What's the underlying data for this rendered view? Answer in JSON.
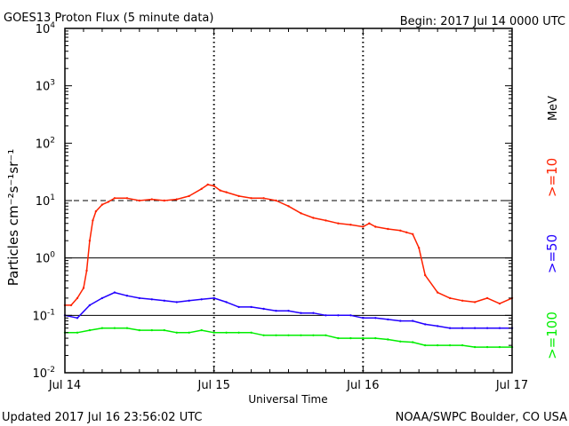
{
  "chart_data": {
    "type": "line",
    "title": "GOES13 Proton Flux (5 minute data)",
    "begin_label": "Begin: 2017 Jul 14 0000 UTC",
    "xlabel": "Universal Time",
    "ylabel": "Particles cm⁻²s⁻¹sr⁻¹",
    "units_label": "MeV",
    "y_scale": "log",
    "ylim": [
      0.01,
      10000
    ],
    "y_ticks": [
      {
        "value": 10000,
        "base": "10",
        "exp": "4"
      },
      {
        "value": 1000,
        "base": "10",
        "exp": "3"
      },
      {
        "value": 100,
        "base": "10",
        "exp": "2"
      },
      {
        "value": 10,
        "base": "10",
        "exp": "1"
      },
      {
        "value": 1,
        "base": "10",
        "exp": "0"
      },
      {
        "value": 0.1,
        "base": "10",
        "exp": "-1"
      },
      {
        "value": 0.01,
        "base": "10",
        "exp": "-2"
      }
    ],
    "xlim_hours": [
      0,
      72
    ],
    "x_ticks": [
      {
        "hour": 0,
        "label": "Jul 14"
      },
      {
        "hour": 24,
        "label": "Jul 15"
      },
      {
        "hour": 48,
        "label": "Jul 16"
      },
      {
        "hour": 72,
        "label": "Jul 17"
      }
    ],
    "threshold_lines": [
      {
        "value": 10,
        "style": "dashed"
      },
      {
        "value": 1,
        "style": "solid"
      },
      {
        "value": 0.1,
        "style": "solid"
      }
    ],
    "series": [
      {
        "name": ">=10",
        "color": "#ff2200",
        "x_hours": [
          0,
          1,
          2,
          3,
          3.5,
          4,
          4.5,
          5,
          6,
          7,
          8,
          10,
          12,
          14,
          16,
          18,
          20,
          22,
          23,
          24,
          25,
          26,
          28,
          30,
          32,
          34,
          36,
          38,
          40,
          42,
          44,
          46,
          48,
          49,
          50,
          52,
          54,
          55,
          56,
          57,
          58,
          60,
          62,
          64,
          66,
          68,
          70,
          72
        ],
        "values": [
          0.15,
          0.15,
          0.2,
          0.3,
          0.6,
          2.0,
          4.5,
          6.5,
          8.5,
          9.5,
          11,
          11,
          10,
          10.5,
          10,
          10.5,
          12,
          16,
          19,
          18,
          15,
          14,
          12,
          11,
          11,
          10,
          8,
          6,
          5,
          4.5,
          4,
          3.8,
          3.5,
          4,
          3.5,
          3.2,
          3,
          2.8,
          2.6,
          1.5,
          0.5,
          0.25,
          0.2,
          0.18,
          0.17,
          0.2,
          0.16,
          0.2
        ]
      },
      {
        "name": ">=50",
        "color": "#2200ff",
        "x_hours": [
          0,
          2,
          4,
          6,
          8,
          10,
          12,
          14,
          16,
          18,
          20,
          22,
          24,
          26,
          28,
          30,
          32,
          34,
          36,
          38,
          40,
          42,
          44,
          46,
          48,
          50,
          52,
          54,
          56,
          58,
          60,
          62,
          64,
          66,
          68,
          70,
          72
        ],
        "values": [
          0.1,
          0.09,
          0.15,
          0.2,
          0.25,
          0.22,
          0.2,
          0.19,
          0.18,
          0.17,
          0.18,
          0.19,
          0.2,
          0.17,
          0.14,
          0.14,
          0.13,
          0.12,
          0.12,
          0.11,
          0.11,
          0.1,
          0.1,
          0.1,
          0.09,
          0.09,
          0.085,
          0.08,
          0.08,
          0.07,
          0.065,
          0.06,
          0.06,
          0.06,
          0.06,
          0.06,
          0.06
        ]
      },
      {
        "name": ">=100",
        "color": "#00ee00",
        "x_hours": [
          0,
          2,
          4,
          6,
          8,
          10,
          12,
          14,
          16,
          18,
          20,
          22,
          24,
          26,
          28,
          30,
          32,
          34,
          36,
          38,
          40,
          42,
          44,
          46,
          48,
          50,
          52,
          54,
          56,
          58,
          60,
          62,
          64,
          66,
          68,
          70,
          72
        ],
        "values": [
          0.05,
          0.05,
          0.055,
          0.06,
          0.06,
          0.06,
          0.055,
          0.055,
          0.055,
          0.05,
          0.05,
          0.055,
          0.05,
          0.05,
          0.05,
          0.05,
          0.045,
          0.045,
          0.045,
          0.045,
          0.045,
          0.045,
          0.04,
          0.04,
          0.04,
          0.04,
          0.038,
          0.035,
          0.034,
          0.03,
          0.03,
          0.03,
          0.03,
          0.028,
          0.028,
          0.028,
          0.028
        ]
      }
    ],
    "legend": [
      {
        "label": ">=10",
        "color": "#ff2200"
      },
      {
        "label": ">=50",
        "color": "#2200ff"
      },
      {
        "label": ">=100",
        "color": "#00ee00"
      }
    ]
  },
  "footer": {
    "updated": "Updated 2017 Jul 16 23:56:02 UTC",
    "credit": "NOAA/SWPC Boulder, CO USA"
  }
}
